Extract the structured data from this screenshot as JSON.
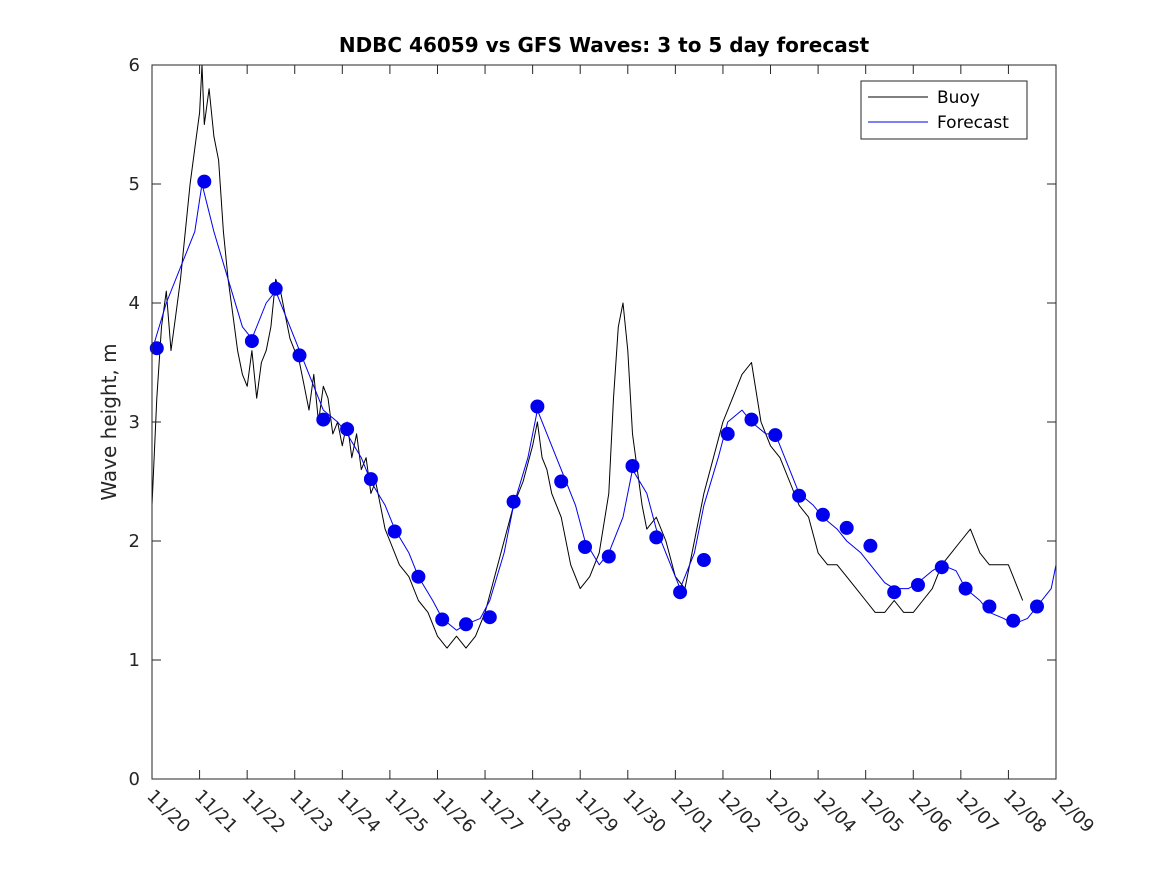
{
  "chart_data": {
    "type": "line",
    "title": "NDBC 46059 vs GFS Waves: 3 to 5 day forecast",
    "xlabel": "",
    "ylabel": "Wave height, m",
    "xlim": [
      0,
      19
    ],
    "ylim": [
      0,
      6
    ],
    "x_units": "days since 11/20",
    "x_tick_values": [
      0,
      1,
      2,
      3,
      4,
      5,
      6,
      7,
      8,
      9,
      10,
      11,
      12,
      13,
      14,
      15,
      16,
      17,
      18,
      19
    ],
    "x_tick_labels": [
      "11/20",
      "11/21",
      "11/22",
      "11/23",
      "11/24",
      "11/25",
      "11/26",
      "11/27",
      "11/28",
      "11/29",
      "11/30",
      "12/01",
      "12/02",
      "12/03",
      "12/04",
      "12/05",
      "12/06",
      "12/07",
      "12/08",
      "12/09"
    ],
    "y_tick_values": [
      0,
      1,
      2,
      3,
      4,
      5,
      6
    ],
    "y_tick_labels": [
      "0",
      "1",
      "2",
      "3",
      "4",
      "5",
      "6"
    ],
    "legend": {
      "location": "top-right",
      "entries": [
        {
          "name": "Buoy",
          "color": "#000000"
        },
        {
          "name": "Forecast",
          "color": "#0000ee"
        }
      ]
    },
    "series": [
      {
        "name": "Buoy",
        "color": "#000000",
        "x": [
          0,
          0.1,
          0.2,
          0.3,
          0.4,
          0.5,
          0.6,
          0.7,
          0.8,
          0.9,
          1.0,
          1.05,
          1.1,
          1.2,
          1.3,
          1.4,
          1.5,
          1.6,
          1.7,
          1.8,
          1.9,
          2.0,
          2.1,
          2.2,
          2.3,
          2.4,
          2.5,
          2.6,
          2.7,
          2.8,
          2.9,
          3.0,
          3.1,
          3.2,
          3.3,
          3.4,
          3.5,
          3.6,
          3.7,
          3.8,
          3.9,
          4.0,
          4.1,
          4.2,
          4.3,
          4.4,
          4.5,
          4.6,
          4.7,
          4.8,
          4.9,
          5.0,
          5.2,
          5.4,
          5.6,
          5.8,
          6.0,
          6.2,
          6.4,
          6.6,
          6.8,
          7.0,
          7.2,
          7.4,
          7.6,
          7.8,
          8.0,
          8.1,
          8.2,
          8.3,
          8.4,
          8.6,
          8.8,
          9.0,
          9.2,
          9.4,
          9.6,
          9.7,
          9.8,
          9.9,
          10.0,
          10.1,
          10.2,
          10.3,
          10.4,
          10.6,
          10.8,
          11.0,
          11.2,
          11.4,
          11.6,
          11.8,
          12.0,
          12.2,
          12.4,
          12.6,
          12.8,
          13.0,
          13.2,
          13.4,
          13.6,
          13.8,
          14.0,
          14.2,
          14.4,
          14.6,
          14.8,
          15.0,
          15.2,
          15.4,
          15.6,
          15.8,
          16.0,
          16.2,
          16.4,
          16.6,
          16.8,
          17.0,
          17.2,
          17.4,
          17.6,
          17.8,
          18.0,
          18.1,
          18.2,
          18.3
        ],
        "values": [
          2.3,
          3.2,
          3.8,
          4.1,
          3.6,
          3.9,
          4.2,
          4.6,
          5.0,
          5.3,
          5.6,
          6.0,
          5.5,
          5.8,
          5.4,
          5.2,
          4.6,
          4.2,
          3.9,
          3.6,
          3.4,
          3.3,
          3.6,
          3.2,
          3.5,
          3.6,
          3.8,
          4.2,
          4.1,
          3.9,
          3.7,
          3.6,
          3.5,
          3.3,
          3.1,
          3.4,
          3.0,
          3.3,
          3.2,
          2.9,
          3.0,
          2.8,
          3.0,
          2.7,
          2.9,
          2.6,
          2.7,
          2.4,
          2.5,
          2.3,
          2.1,
          2.0,
          1.8,
          1.7,
          1.5,
          1.4,
          1.2,
          1.1,
          1.2,
          1.1,
          1.2,
          1.4,
          1.7,
          2.0,
          2.3,
          2.5,
          2.8,
          3.0,
          2.7,
          2.6,
          2.4,
          2.2,
          1.8,
          1.6,
          1.7,
          1.9,
          2.4,
          3.2,
          3.8,
          4.0,
          3.6,
          2.9,
          2.6,
          2.3,
          2.1,
          2.2,
          2.0,
          1.7,
          1.6,
          2.0,
          2.4,
          2.7,
          3.0,
          3.2,
          3.4,
          3.5,
          3.0,
          2.8,
          2.7,
          2.5,
          2.3,
          2.2,
          1.9,
          1.8,
          1.8,
          1.7,
          1.6,
          1.5,
          1.4,
          1.4,
          1.5,
          1.4,
          1.4,
          1.5,
          1.6,
          1.8,
          1.9,
          2.0,
          2.1,
          1.9,
          1.8,
          1.8,
          1.8,
          1.7,
          1.6,
          1.5
        ]
      },
      {
        "name": "Forecast",
        "color": "#0000ee",
        "x": [
          0,
          0.3,
          0.6,
          0.9,
          1.05,
          1.3,
          1.6,
          1.9,
          2.1,
          2.4,
          2.6,
          2.9,
          3.1,
          3.4,
          3.6,
          3.9,
          4.1,
          4.4,
          4.6,
          4.9,
          5.1,
          5.4,
          5.6,
          5.9,
          6.1,
          6.4,
          6.6,
          6.9,
          7.1,
          7.4,
          7.6,
          7.9,
          8.1,
          8.4,
          8.6,
          8.9,
          9.1,
          9.4,
          9.6,
          9.9,
          10.1,
          10.4,
          10.6,
          10.9,
          11.1,
          11.4,
          11.6,
          11.9,
          12.1,
          12.4,
          12.6,
          12.9,
          13.1,
          13.4,
          13.6,
          13.9,
          14.1,
          14.4,
          14.6,
          14.9,
          15.1,
          15.4,
          15.6,
          15.9,
          16.1,
          16.4,
          16.6,
          16.9,
          17.1,
          17.4,
          17.6,
          17.9,
          18.1,
          18.4,
          18.6,
          18.9,
          19.0
        ],
        "values": [
          3.6,
          4.0,
          4.3,
          4.6,
          5.0,
          4.6,
          4.2,
          3.8,
          3.7,
          4.0,
          4.1,
          3.8,
          3.6,
          3.3,
          3.1,
          3.0,
          2.9,
          2.7,
          2.5,
          2.3,
          2.1,
          1.9,
          1.7,
          1.5,
          1.35,
          1.25,
          1.3,
          1.35,
          1.5,
          1.9,
          2.3,
          2.7,
          3.1,
          2.8,
          2.6,
          2.3,
          2.0,
          1.8,
          1.9,
          2.2,
          2.6,
          2.4,
          2.1,
          1.8,
          1.6,
          1.9,
          2.3,
          2.7,
          3.0,
          3.1,
          3.0,
          2.9,
          2.9,
          2.6,
          2.4,
          2.3,
          2.2,
          2.1,
          2.0,
          1.9,
          1.8,
          1.65,
          1.6,
          1.6,
          1.65,
          1.75,
          1.8,
          1.75,
          1.6,
          1.5,
          1.4,
          1.35,
          1.3,
          1.35,
          1.45,
          1.6,
          1.8
        ]
      }
    ],
    "markers": {
      "name": "Forecast",
      "color": "#0000ee",
      "x": [
        0.1,
        1.1,
        2.1,
        2.6,
        3.1,
        3.6,
        4.1,
        4.6,
        5.1,
        5.6,
        6.1,
        6.6,
        7.1,
        7.6,
        8.1,
        8.6,
        9.1,
        9.6,
        10.1,
        10.6,
        11.1,
        11.6,
        12.1,
        12.6,
        13.1,
        13.6,
        14.1,
        14.6,
        15.1,
        15.6,
        16.1,
        16.6,
        17.1,
        17.6,
        18.1,
        18.6
      ],
      "values": [
        3.62,
        5.02,
        3.68,
        4.12,
        3.56,
        3.02,
        2.94,
        2.52,
        2.08,
        1.7,
        1.34,
        1.3,
        1.36,
        2.33,
        3.13,
        2.5,
        1.95,
        1.87,
        2.63,
        2.03,
        1.57,
        1.84,
        2.9,
        3.02,
        2.89,
        2.38,
        2.22,
        2.11,
        1.96,
        1.57,
        1.63,
        1.78,
        1.6,
        1.45,
        1.33,
        1.45
      ]
    }
  }
}
